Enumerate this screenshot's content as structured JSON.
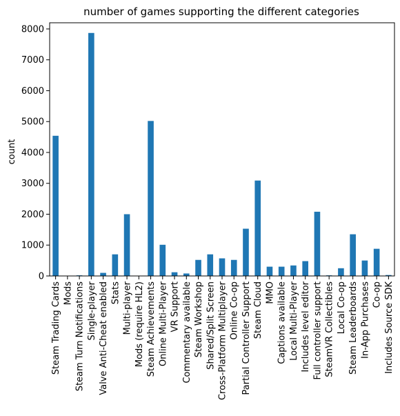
{
  "chart_data": {
    "type": "bar",
    "title": "number of games supporting the different categories",
    "xlabel": "",
    "ylabel": "count",
    "ylim": [
      0,
      8200
    ],
    "yticks": [
      0,
      1000,
      2000,
      3000,
      4000,
      5000,
      6000,
      7000,
      8000
    ],
    "grid": false,
    "bar_color": "#1f77b4",
    "categories": [
      "Steam Trading Cards",
      "Mods",
      "Steam Turn Notifications",
      "Single-player",
      "Valve Anti-Cheat enabled",
      "Stats",
      "Multi-player",
      "Mods (require HL2)",
      "Steam Achievements",
      "Online Multi-Player",
      "VR Support",
      "Commentary available",
      "Steam Workshop",
      "Shared/Split Screen",
      "Cross-Platform Multiplayer",
      "Online Co-op",
      "Partial Controller Support",
      "Steam Cloud",
      "MMO",
      "Captions available",
      "Local Multi-Player",
      "Includes level editor",
      "Full controller support",
      "SteamVR Collectibles",
      "Local Co-op",
      "Steam Leaderboards",
      "In-App Purchases",
      "Co-op",
      "Includes Source SDK"
    ],
    "values": [
      4540,
      5,
      20,
      7870,
      100,
      700,
      2000,
      5,
      5020,
      1010,
      120,
      80,
      520,
      700,
      570,
      520,
      1530,
      3090,
      300,
      300,
      340,
      480,
      2080,
      20,
      250,
      1350,
      500,
      880,
      30
    ]
  }
}
